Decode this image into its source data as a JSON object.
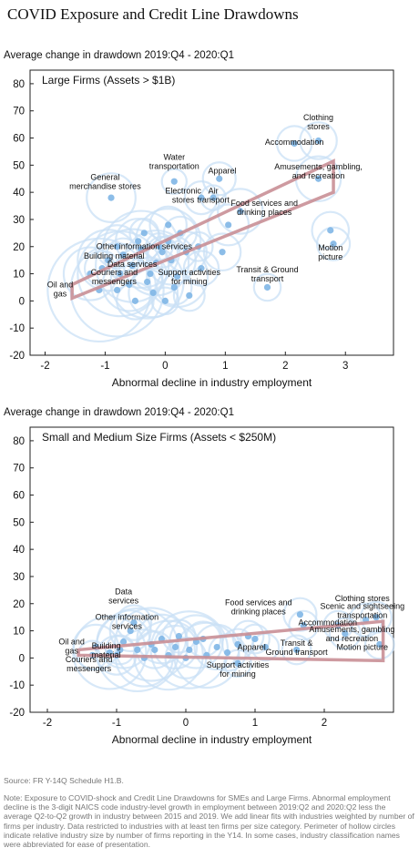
{
  "title": "COVID Exposure and Credit Line Drawdowns",
  "source": "Source: FR Y-14Q Schedule H1.B.",
  "note": "Note: Exposure to COVID-shock and Credit Line Drawdowns for SMEs and Large Firms. Abnormal employment decline is the 3-digit NAICS code industry-level growth in employment between 2019:Q2 and 2020:Q2 less the average Q2-to-Q2 growth in industry between 2015 and 2019. We add linear fits with industries weighted by number of firms per industry. Data restricted to industries with at least ten firms per size category. Perimeter of hollow circles indicate relative industry size by number of firms reporting in the Y14. In some cases, industry classification names were abbreviated for ease of presentation.",
  "chart_data": [
    {
      "type": "scatter",
      "subtitle": "Average change in drawdown 2019:Q4 - 2020:Q1",
      "panel_title": "Large Firms (Assets > $1B)",
      "xlabel": "Abnormal decline in industry employment",
      "ylabel": "",
      "xlim": [
        -2.25,
        3.8
      ],
      "ylim": [
        -20,
        85
      ],
      "xticks": [
        -2,
        -1,
        0,
        1,
        2,
        3
      ],
      "yticks": [
        -20,
        -10,
        0,
        10,
        20,
        30,
        40,
        50,
        60,
        70,
        80
      ],
      "grid": false,
      "colors": {
        "point": "#7fb6e6",
        "ring": "#c9e0f5",
        "fit": "#c98f96"
      },
      "fit_lines": [
        {
          "x": [
            -1.55,
            2.8
          ],
          "y": [
            6,
            51.5
          ]
        },
        {
          "x": [
            -1.55,
            2.8
          ],
          "y": [
            1,
            40
          ]
        }
      ],
      "points": [
        {
          "x": -1.1,
          "y": 4,
          "w": 4.5
        },
        {
          "x": -0.8,
          "y": 4,
          "w": 4
        },
        {
          "x": -0.75,
          "y": 10,
          "w": 3.6
        },
        {
          "x": -0.55,
          "y": 13,
          "w": 3
        },
        {
          "x": -0.3,
          "y": 7,
          "w": 3
        },
        {
          "x": -0.4,
          "y": 19,
          "w": 3.2
        },
        {
          "x": -0.15,
          "y": 14,
          "w": 2.6
        },
        {
          "x": 0.05,
          "y": 22,
          "w": 2.6
        },
        {
          "x": 0.2,
          "y": 9,
          "w": 2.4
        },
        {
          "x": -0.95,
          "y": 15,
          "w": 2.4
        },
        {
          "x": -1.25,
          "y": 10,
          "w": 2
        },
        {
          "x": -0.6,
          "y": 6,
          "w": 2
        },
        {
          "x": -0.2,
          "y": 3,
          "w": 1.8
        },
        {
          "x": 0.1,
          "y": 15,
          "w": 1.8
        },
        {
          "x": -0.45,
          "y": 22,
          "w": 1.6
        },
        {
          "x": -0.8,
          "y": 20,
          "w": 1.5
        },
        {
          "x": 0.35,
          "y": 18,
          "w": 1.4
        },
        {
          "x": 0.05,
          "y": 28,
          "w": 1.2
        },
        {
          "x": -0.5,
          "y": 0,
          "w": 1.2
        },
        {
          "x": 0.15,
          "y": 5,
          "w": 1.1
        },
        {
          "x": -1.05,
          "y": 12,
          "w": 1.1
        },
        {
          "x": 0.25,
          "y": 25,
          "w": 1
        },
        {
          "x": -0.7,
          "y": 17,
          "w": 1
        },
        {
          "x": -0.25,
          "y": 10,
          "w": 1
        },
        {
          "x": 0.4,
          "y": 2,
          "w": 0.9
        },
        {
          "x": -0.35,
          "y": 25,
          "w": 0.8
        },
        {
          "x": 0.55,
          "y": 20,
          "w": 0.8
        },
        {
          "x": -0.1,
          "y": 20,
          "w": 0.7
        },
        {
          "x": 0.0,
          "y": 0,
          "w": 0.7
        },
        {
          "x": -0.9,
          "y": 38,
          "w": 1.8
        },
        {
          "x": 0.15,
          "y": 44,
          "w": 0.6
        },
        {
          "x": 0.9,
          "y": 45,
          "w": 1
        },
        {
          "x": 0.6,
          "y": 38,
          "w": 1
        },
        {
          "x": 0.8,
          "y": 38,
          "w": 0.6
        },
        {
          "x": 0.95,
          "y": 18,
          "w": 1.2
        },
        {
          "x": 1.05,
          "y": 28,
          "w": 1.4
        },
        {
          "x": 1.25,
          "y": 33,
          "w": 1.6
        },
        {
          "x": 1.7,
          "y": 5,
          "w": 0.7
        },
        {
          "x": 2.15,
          "y": 58,
          "w": 1.1
        },
        {
          "x": 2.55,
          "y": 59,
          "w": 1.2
        },
        {
          "x": 2.55,
          "y": 45,
          "w": 1.6
        },
        {
          "x": 2.75,
          "y": 26,
          "w": 1.2
        },
        {
          "x": 2.8,
          "y": 21,
          "w": 1
        },
        {
          "x": 0.6,
          "y": 12,
          "w": 1.1
        },
        {
          "x": -0.05,
          "y": 18,
          "w": 0.9
        }
      ],
      "annotations": [
        {
          "text": [
            "Clothing",
            "stores"
          ],
          "x": 2.55,
          "y": 66.5,
          "anchor": "middle"
        },
        {
          "text": [
            "Accommodation"
          ],
          "x": 2.15,
          "y": 57.5,
          "anchor": "middle"
        },
        {
          "text": [
            "Water",
            "transportation"
          ],
          "x": 0.15,
          "y": 52,
          "anchor": "middle"
        },
        {
          "text": [
            "Apparel"
          ],
          "x": 0.95,
          "y": 47,
          "anchor": "middle"
        },
        {
          "text": [
            "Amusements, gambling,",
            "and recreation"
          ],
          "x": 2.55,
          "y": 48.5,
          "anchor": "middle"
        },
        {
          "text": [
            "General",
            "merchandise stores"
          ],
          "x": -1.0,
          "y": 44.5,
          "anchor": "middle"
        },
        {
          "text": [
            "Electronic",
            "stores"
          ],
          "x": 0.3,
          "y": 39.5,
          "anchor": "middle"
        },
        {
          "text": [
            "Air",
            "transport"
          ],
          "x": 0.8,
          "y": 39.5,
          "anchor": "middle"
        },
        {
          "text": [
            "Food services and",
            "drinking places"
          ],
          "x": 1.65,
          "y": 35,
          "anchor": "middle"
        },
        {
          "text": [
            "Other information services"
          ],
          "x": -0.35,
          "y": 19,
          "anchor": "middle"
        },
        {
          "text": [
            "Building material"
          ],
          "x": -0.85,
          "y": 15.5,
          "anchor": "middle"
        },
        {
          "text": [
            "Data services"
          ],
          "x": -0.55,
          "y": 12.5,
          "anchor": "middle"
        },
        {
          "text": [
            "Couriers and",
            "messengers"
          ],
          "x": -0.85,
          "y": 9.5,
          "anchor": "middle"
        },
        {
          "text": [
            "Motion",
            "picture"
          ],
          "x": 2.75,
          "y": 18.5,
          "anchor": "middle"
        },
        {
          "text": [
            "Support activities",
            "for mining"
          ],
          "x": 0.4,
          "y": 9.5,
          "anchor": "middle"
        },
        {
          "text": [
            "Transit & Ground",
            "transport"
          ],
          "x": 1.7,
          "y": 10.5,
          "anchor": "middle"
        },
        {
          "text": [
            "Oil and",
            "gas"
          ],
          "x": -1.75,
          "y": 5,
          "anchor": "middle"
        }
      ]
    },
    {
      "type": "scatter",
      "subtitle": "Average change in drawdown 2019:Q4 - 2020:Q1",
      "panel_title": "Small and Medium Size Firms (Assets < $250M)",
      "xlabel": "Abnormal decline in industry employment",
      "ylabel": "",
      "xlim": [
        -2.25,
        3.0
      ],
      "ylim": [
        -20,
        85
      ],
      "xticks": [
        -2,
        -1,
        0,
        1,
        2
      ],
      "yticks": [
        -20,
        -10,
        0,
        10,
        20,
        30,
        40,
        50,
        60,
        70,
        80
      ],
      "grid": false,
      "colors": {
        "point": "#7fb6e6",
        "ring": "#c9e0f5",
        "fit": "#c98f96"
      },
      "fit_lines": [
        {
          "x": [
            -1.55,
            2.85
          ],
          "y": [
            3,
            13.5
          ]
        },
        {
          "x": [
            -1.55,
            2.85
          ],
          "y": [
            1,
            -1
          ]
        }
      ],
      "points": [
        {
          "x": -1.1,
          "y": 2,
          "w": 3
        },
        {
          "x": -0.7,
          "y": 3,
          "w": 3.5
        },
        {
          "x": -0.5,
          "y": 5,
          "w": 3
        },
        {
          "x": -0.25,
          "y": 1,
          "w": 2.8
        },
        {
          "x": 0.05,
          "y": 3,
          "w": 3.2
        },
        {
          "x": 0.3,
          "y": 1,
          "w": 2.6
        },
        {
          "x": -0.9,
          "y": 6,
          "w": 2
        },
        {
          "x": -0.6,
          "y": 0,
          "w": 2.2
        },
        {
          "x": 0.15,
          "y": 6,
          "w": 2
        },
        {
          "x": -1.3,
          "y": 4,
          "w": 1.6
        },
        {
          "x": -0.35,
          "y": 7,
          "w": 1.8
        },
        {
          "x": 0.45,
          "y": 4,
          "w": 1.6
        },
        {
          "x": -0.8,
          "y": 10,
          "w": 1.4
        },
        {
          "x": -0.15,
          "y": 4,
          "w": 1.5
        },
        {
          "x": 0.0,
          "y": 0,
          "w": 1.4
        },
        {
          "x": 0.6,
          "y": 2,
          "w": 1.2
        },
        {
          "x": -1.0,
          "y": 1,
          "w": 1.3
        },
        {
          "x": -0.45,
          "y": 3,
          "w": 1.2
        },
        {
          "x": 0.25,
          "y": 7,
          "w": 1.1
        },
        {
          "x": -0.1,
          "y": 8,
          "w": 1
        },
        {
          "x": 0.75,
          "y": 5,
          "w": 0.9
        },
        {
          "x": -0.75,
          "y": 13,
          "w": 1.1
        },
        {
          "x": 0.9,
          "y": 8,
          "w": 0.9
        },
        {
          "x": 0.75,
          "y": -2,
          "w": 0.7
        },
        {
          "x": 1.0,
          "y": 7,
          "w": 0.8
        },
        {
          "x": 1.15,
          "y": 4,
          "w": 0.7
        },
        {
          "x": 1.65,
          "y": 16,
          "w": 1
        },
        {
          "x": 1.7,
          "y": 12,
          "w": 0.8
        },
        {
          "x": 2.2,
          "y": 12,
          "w": 0.8
        },
        {
          "x": 2.3,
          "y": 9,
          "w": 0.9
        },
        {
          "x": 2.6,
          "y": 14,
          "w": 1
        },
        {
          "x": 2.75,
          "y": 15,
          "w": 0.9
        },
        {
          "x": 2.8,
          "y": 5,
          "w": 0.8
        },
        {
          "x": 1.6,
          "y": 3,
          "w": 0.8
        },
        {
          "x": -1.35,
          "y": 1,
          "w": 0.8
        },
        {
          "x": -0.95,
          "y": 3,
          "w": 0.8
        }
      ],
      "annotations": [
        {
          "text": [
            "Data",
            "services"
          ],
          "x": -0.9,
          "y": 23.5,
          "anchor": "middle"
        },
        {
          "text": [
            "Other information",
            "services"
          ],
          "x": -0.85,
          "y": 14,
          "anchor": "middle"
        },
        {
          "text": [
            "Food services and",
            "drinking places"
          ],
          "x": 1.05,
          "y": 19.5,
          "anchor": "middle"
        },
        {
          "text": [
            "Clothing stores"
          ],
          "x": 2.55,
          "y": 21,
          "anchor": "middle"
        },
        {
          "text": [
            "Scenic and sightseeing",
            "transportation"
          ],
          "x": 2.55,
          "y": 18,
          "anchor": "middle"
        },
        {
          "text": [
            "Accommodation"
          ],
          "x": 2.05,
          "y": 12,
          "anchor": "middle"
        },
        {
          "text": [
            "Amusements, gambling",
            "and recreation"
          ],
          "x": 2.4,
          "y": 9.5,
          "anchor": "middle"
        },
        {
          "text": [
            "Oil and",
            "gas"
          ],
          "x": -1.65,
          "y": 5,
          "anchor": "middle"
        },
        {
          "text": [
            "Building",
            "material"
          ],
          "x": -1.15,
          "y": 3.5,
          "anchor": "middle"
        },
        {
          "text": [
            "Couriers and",
            "messengers"
          ],
          "x": -1.4,
          "y": -1.5,
          "anchor": "middle"
        },
        {
          "text": [
            "Apparel"
          ],
          "x": 0.95,
          "y": 3,
          "anchor": "middle"
        },
        {
          "text": [
            "Transit &",
            "Ground transport"
          ],
          "x": 1.6,
          "y": 4.5,
          "anchor": "middle"
        },
        {
          "text": [
            "Motion picture"
          ],
          "x": 2.55,
          "y": 3,
          "anchor": "middle"
        },
        {
          "text": [
            "Support activities",
            "for mining"
          ],
          "x": 0.75,
          "y": -3.5,
          "anchor": "middle"
        }
      ]
    }
  ]
}
